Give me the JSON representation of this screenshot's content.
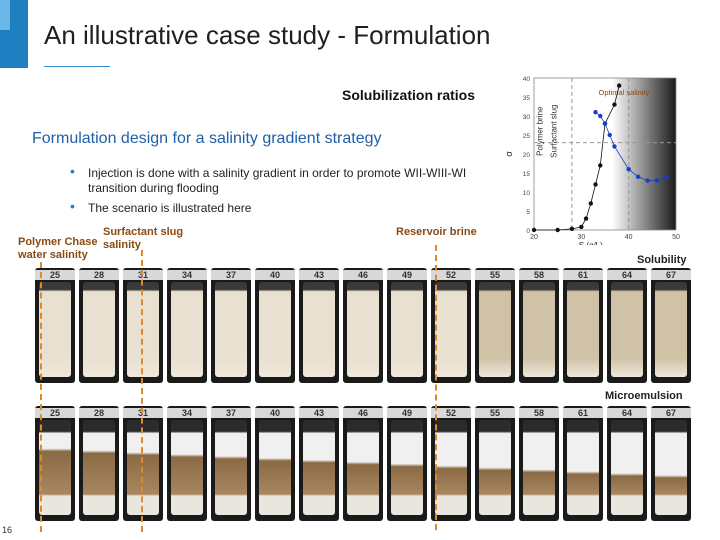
{
  "title": "An illustrative case study - Formulation",
  "solubilization_ratios_label": "Solubilization ratios",
  "subtitle": "Formulation design for a salinity gradient strategy",
  "bullets": [
    "Injection is done with a salinity gradient in order to promote WII-WIII-WI transition during flooding",
    "The scenario is illustrated here"
  ],
  "labels": {
    "polymer_chase": "Polymer Chase water salinity",
    "surfactant_slug": "Surfactant slug salinity",
    "reservoir_brine": "Reservoir brine",
    "solubility": "Solubility",
    "microemulsion": "Microemulsion"
  },
  "page_number": "16",
  "tube_salinities_row1": [
    "25",
    "28",
    "31",
    "34",
    "37",
    "40",
    "43",
    "46",
    "49",
    "52",
    "55",
    "58",
    "61",
    "64",
    "67"
  ],
  "tube_salinities_row2": [
    "25",
    "28",
    "31",
    "34",
    "37",
    "40",
    "43",
    "46",
    "49",
    "52",
    "55",
    "58",
    "61",
    "64",
    "67"
  ],
  "chart_data": {
    "type": "scatter",
    "title": "",
    "xlabel": "S (g/L)",
    "ylabel": "σ",
    "xlim": [
      20,
      50
    ],
    "ylim": [
      0,
      40
    ],
    "xticks": [
      20,
      30,
      40,
      50
    ],
    "yticks": [
      0,
      5,
      10,
      15,
      20,
      25,
      30,
      35,
      40
    ],
    "region_labels": [
      "Polymer brine",
      "Surfactant slug"
    ],
    "annotation": "Optimal salinity",
    "series": [
      {
        "color": "#111111",
        "x": [
          20,
          25,
          28,
          30,
          31,
          32,
          33,
          34,
          35,
          37,
          38
        ],
        "y": [
          0,
          0,
          0.3,
          0.8,
          3,
          7,
          12,
          17,
          28,
          33,
          38
        ]
      },
      {
        "color": "#1a3cc8",
        "x": [
          33,
          34,
          35,
          36,
          37,
          40,
          42,
          44,
          46,
          48
        ],
        "y": [
          31,
          30,
          28,
          25,
          22,
          16,
          14,
          13,
          13,
          14
        ]
      }
    ]
  }
}
